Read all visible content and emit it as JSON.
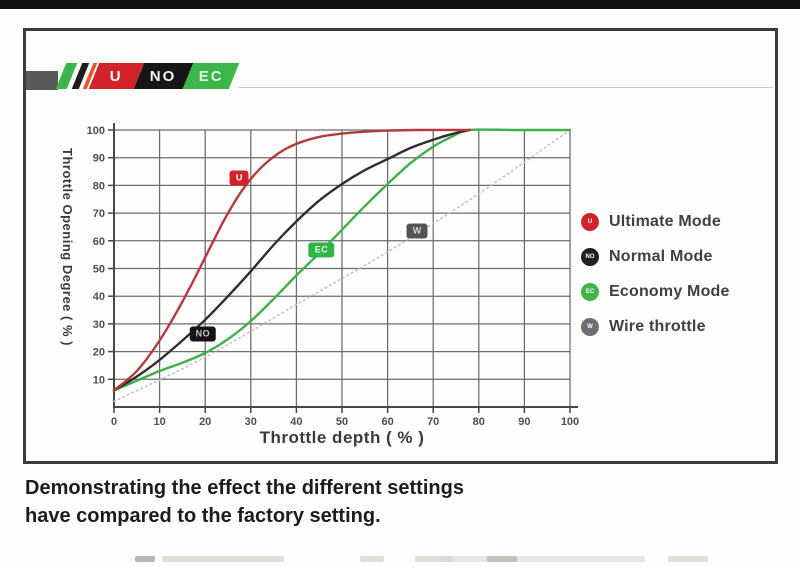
{
  "logo": {
    "badges": [
      {
        "label": "U"
      },
      {
        "label": "NO"
      },
      {
        "label": "EC"
      }
    ]
  },
  "caption": {
    "line1": "Demonstrating the effect the different settings",
    "line2": "have compared to the factory setting."
  },
  "chart_data": {
    "type": "line",
    "title": "",
    "xlabel": "Throttle depth ( % )",
    "ylabel": "Throttle Opening Degree ( % )",
    "xlim": [
      0,
      100
    ],
    "ylim": [
      0,
      100
    ],
    "x_ticks": [
      0,
      10,
      20,
      30,
      40,
      50,
      60,
      70,
      80,
      90,
      100
    ],
    "y_ticks": [
      10,
      20,
      30,
      40,
      50,
      60,
      70,
      80,
      90,
      100
    ],
    "grid": true,
    "grid_color": "#6c6c6c",
    "axis_color": "#474747",
    "legend_position": "right",
    "series": [
      {
        "name": "Ultimate Mode",
        "color": "#b53a3e",
        "badge": "U",
        "badge_bg": "#d2232a",
        "badge_at": {
          "x": 27.5,
          "y": 82.5
        },
        "dashed": false,
        "points": [
          [
            0,
            6
          ],
          [
            5,
            13
          ],
          [
            10,
            24
          ],
          [
            15,
            38
          ],
          [
            20,
            54
          ],
          [
            24,
            67
          ],
          [
            28,
            78
          ],
          [
            32,
            86
          ],
          [
            36,
            91.5
          ],
          [
            40,
            95
          ],
          [
            45,
            97.5
          ],
          [
            50,
            98.7
          ],
          [
            55,
            99.4
          ],
          [
            60,
            99.8
          ],
          [
            66,
            100
          ],
          [
            78,
            100
          ]
        ]
      },
      {
        "name": "Normal Mode",
        "color": "#2e2e2e",
        "badge": "NO",
        "badge_bg": "#141414",
        "badge_at": {
          "x": 19.5,
          "y": 26.5
        },
        "dashed": false,
        "points": [
          [
            0,
            6
          ],
          [
            5,
            11
          ],
          [
            10,
            17
          ],
          [
            15,
            24
          ],
          [
            20,
            31.5
          ],
          [
            25,
            40
          ],
          [
            30,
            49
          ],
          [
            35,
            58.5
          ],
          [
            40,
            67
          ],
          [
            45,
            74.5
          ],
          [
            50,
            80.5
          ],
          [
            55,
            85.5
          ],
          [
            60,
            89.5
          ],
          [
            65,
            93.5
          ],
          [
            70,
            96.5
          ],
          [
            74,
            98.5
          ],
          [
            78,
            100
          ]
        ]
      },
      {
        "name": "Economy Mode",
        "color": "#3faf4d",
        "badge": "EC",
        "badge_bg": "#2fb54a",
        "badge_at": {
          "x": 45.5,
          "y": 56.5
        },
        "dashed": false,
        "points": [
          [
            0,
            6
          ],
          [
            5,
            9.5
          ],
          [
            10,
            13
          ],
          [
            15,
            16
          ],
          [
            20,
            19.5
          ],
          [
            25,
            24.5
          ],
          [
            30,
            31
          ],
          [
            35,
            39
          ],
          [
            40,
            47.5
          ],
          [
            45,
            55.5
          ],
          [
            50,
            64
          ],
          [
            55,
            72.5
          ],
          [
            60,
            80.5
          ],
          [
            65,
            88
          ],
          [
            70,
            94
          ],
          [
            74,
            97.5
          ],
          [
            78,
            100
          ],
          [
            88,
            100
          ],
          [
            100,
            100
          ]
        ]
      },
      {
        "name": "Wire throttle",
        "color": "#c3c3c0",
        "badge": "W",
        "badge_bg": "#535456",
        "badge_at": {
          "x": 66.5,
          "y": 63.5
        },
        "dashed": true,
        "points": [
          [
            0,
            2
          ],
          [
            20,
            18
          ],
          [
            40,
            37
          ],
          [
            60,
            56
          ],
          [
            80,
            77
          ],
          [
            100,
            100
          ]
        ]
      }
    ],
    "legend": [
      {
        "label": "Ultimate Mode",
        "marker": "U",
        "color": "#d2232a"
      },
      {
        "label": "Normal Mode",
        "marker": "NO",
        "color": "#231f20"
      },
      {
        "label": "Economy Mode",
        "marker": "EC",
        "color": "#3db54a"
      },
      {
        "label": "Wire throttle",
        "marker": "W",
        "color": "#6d6e71"
      }
    ]
  }
}
